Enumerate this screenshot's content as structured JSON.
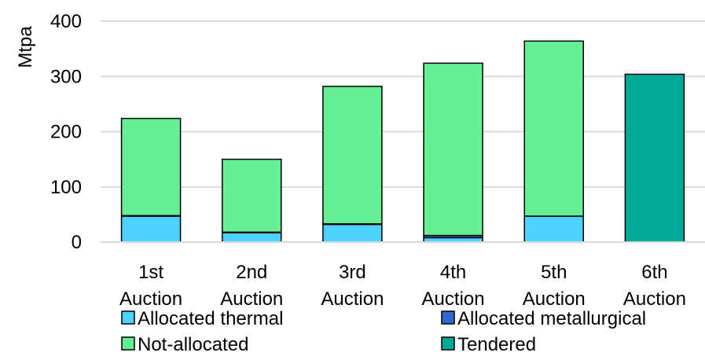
{
  "chart_data": {
    "type": "bar",
    "stacked": true,
    "categories": [
      [
        "1st",
        "Auction"
      ],
      [
        "2nd",
        "Auction"
      ],
      [
        "3rd",
        "Auction"
      ],
      [
        "4th",
        "Auction"
      ],
      [
        "5th",
        "Auction"
      ],
      [
        "6th",
        "Auction"
      ]
    ],
    "series": [
      {
        "name": "Allocated thermal",
        "color": "#4dd2ff",
        "values": [
          47,
          17,
          32,
          8,
          47,
          0
        ]
      },
      {
        "name": "Allocated metallurgical",
        "color": "#3366cc",
        "values": [
          1,
          1,
          1,
          4,
          0,
          0
        ]
      },
      {
        "name": "Not-allocated",
        "color": "#66f095",
        "values": [
          176,
          132,
          249,
          312,
          317,
          0
        ]
      },
      {
        "name": "Tendered",
        "color": "#00aa99",
        "values": [
          0,
          0,
          0,
          0,
          0,
          304
        ]
      }
    ],
    "ylabel": "Mtpa",
    "ylim": [
      0,
      400
    ],
    "yticks": [
      0,
      100,
      200,
      300,
      400
    ],
    "grid": true,
    "legend_position": "bottom"
  }
}
